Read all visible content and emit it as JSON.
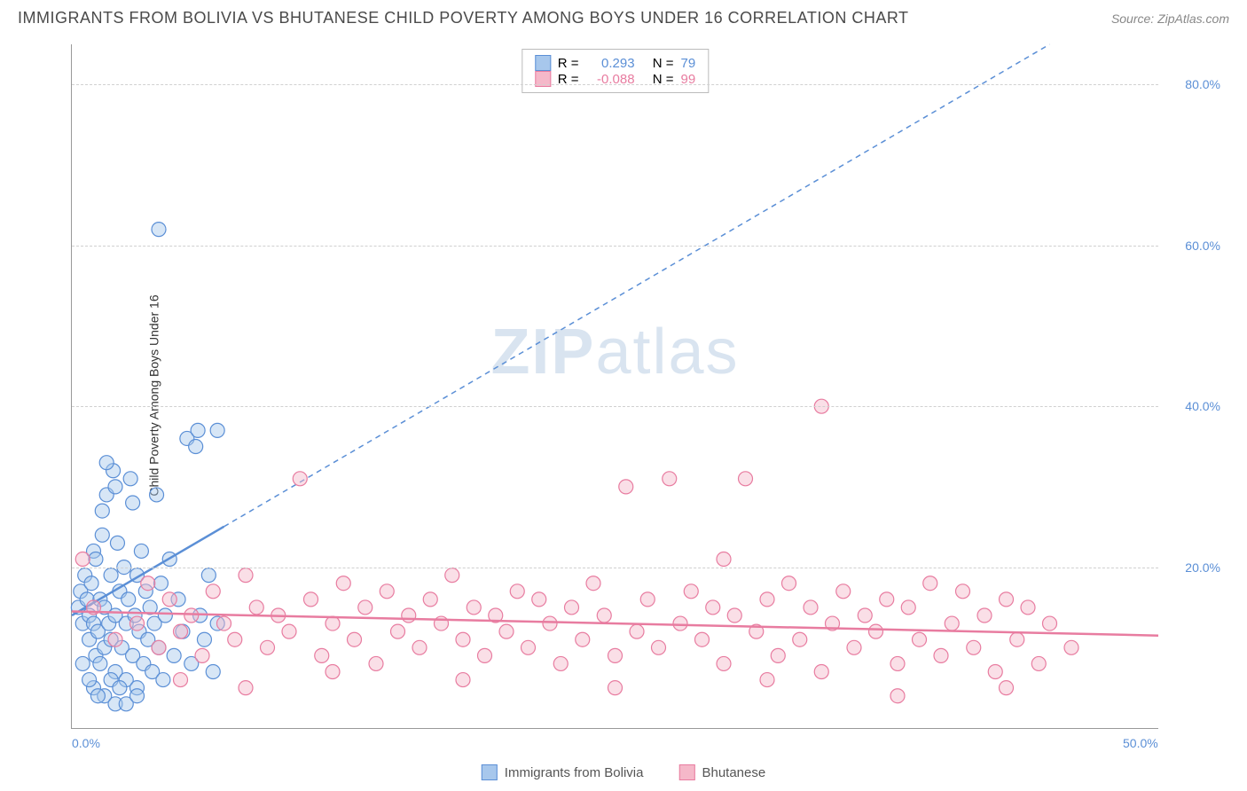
{
  "title": "IMMIGRANTS FROM BOLIVIA VS BHUTANESE CHILD POVERTY AMONG BOYS UNDER 16 CORRELATION CHART",
  "source_label": "Source:",
  "source_name": "ZipAtlas.com",
  "y_axis_label": "Child Poverty Among Boys Under 16",
  "watermark_bold": "ZIP",
  "watermark_light": "atlas",
  "chart": {
    "type": "scatter",
    "background_color": "#ffffff",
    "grid_color": "#d0d0d0",
    "axis_color": "#999999",
    "tick_label_color": "#5b8fd6",
    "xlim": [
      0,
      50
    ],
    "ylim": [
      0,
      85
    ],
    "x_ticks": [
      {
        "value": 0,
        "label": "0.0%"
      },
      {
        "value": 50,
        "label": "50.0%"
      }
    ],
    "y_ticks": [
      {
        "value": 20,
        "label": "20.0%"
      },
      {
        "value": 40,
        "label": "40.0%"
      },
      {
        "value": 60,
        "label": "60.0%"
      },
      {
        "value": 80,
        "label": "80.0%"
      }
    ],
    "series": [
      {
        "name": "Immigrants from Bolivia",
        "fill_color": "#a7c7ec",
        "stroke_color": "#5b8fd6",
        "fill_opacity": 0.45,
        "marker_radius": 8,
        "R_label": "R =",
        "R_value": "0.293",
        "N_label": "N =",
        "N_value": "79",
        "regression": {
          "x1": 0,
          "y1": 14,
          "x2": 45,
          "y2": 85,
          "solid_until_x": 7
        },
        "points": [
          [
            0.3,
            15
          ],
          [
            0.4,
            17
          ],
          [
            0.5,
            13
          ],
          [
            0.6,
            19
          ],
          [
            0.7,
            16
          ],
          [
            0.8,
            11
          ],
          [
            0.8,
            14
          ],
          [
            0.9,
            18
          ],
          [
            1.0,
            22
          ],
          [
            1.0,
            13
          ],
          [
            1.1,
            9
          ],
          [
            1.1,
            21
          ],
          [
            1.2,
            12
          ],
          [
            1.3,
            16
          ],
          [
            1.3,
            8
          ],
          [
            1.4,
            24
          ],
          [
            1.5,
            15
          ],
          [
            1.5,
            10
          ],
          [
            1.6,
            29
          ],
          [
            1.7,
            13
          ],
          [
            1.8,
            19
          ],
          [
            1.8,
            11
          ],
          [
            1.9,
            32
          ],
          [
            2.0,
            14
          ],
          [
            2.0,
            7
          ],
          [
            2.1,
            23
          ],
          [
            2.2,
            17
          ],
          [
            2.3,
            10
          ],
          [
            2.4,
            20
          ],
          [
            2.5,
            13
          ],
          [
            2.5,
            6
          ],
          [
            2.6,
            16
          ],
          [
            2.7,
            31
          ],
          [
            2.8,
            9
          ],
          [
            2.9,
            14
          ],
          [
            3.0,
            19
          ],
          [
            3.0,
            5
          ],
          [
            3.1,
            12
          ],
          [
            3.2,
            22
          ],
          [
            3.3,
            8
          ],
          [
            3.4,
            17
          ],
          [
            3.5,
            11
          ],
          [
            3.6,
            15
          ],
          [
            3.7,
            7
          ],
          [
            3.8,
            13
          ],
          [
            3.9,
            29
          ],
          [
            4.0,
            10
          ],
          [
            4.1,
            18
          ],
          [
            4.2,
            6
          ],
          [
            4.3,
            14
          ],
          [
            4.5,
            21
          ],
          [
            4.7,
            9
          ],
          [
            4.9,
            16
          ],
          [
            5.1,
            12
          ],
          [
            5.3,
            36
          ],
          [
            5.5,
            8
          ],
          [
            5.7,
            35
          ],
          [
            5.8,
            37
          ],
          [
            6.7,
            37
          ],
          [
            5.9,
            14
          ],
          [
            6.1,
            11
          ],
          [
            6.3,
            19
          ],
          [
            6.5,
            7
          ],
          [
            6.7,
            13
          ],
          [
            4.0,
            62
          ],
          [
            1.5,
            4
          ],
          [
            2.0,
            3
          ],
          [
            2.5,
            3
          ],
          [
            3.0,
            4
          ],
          [
            1.0,
            5
          ],
          [
            0.5,
            8
          ],
          [
            1.8,
            6
          ],
          [
            2.2,
            5
          ],
          [
            1.2,
            4
          ],
          [
            0.8,
            6
          ],
          [
            1.6,
            33
          ],
          [
            2.0,
            30
          ],
          [
            2.8,
            28
          ],
          [
            1.4,
            27
          ]
        ]
      },
      {
        "name": "Bhutanese",
        "fill_color": "#f5b8c9",
        "stroke_color": "#e87ca0",
        "fill_opacity": 0.45,
        "marker_radius": 8,
        "R_label": "R =",
        "R_value": "-0.088",
        "N_label": "N =",
        "N_value": "99",
        "regression": {
          "x1": 0,
          "y1": 14.5,
          "x2": 50,
          "y2": 11.5,
          "solid_until_x": 50
        },
        "points": [
          [
            0.5,
            21
          ],
          [
            1.0,
            15
          ],
          [
            2.0,
            11
          ],
          [
            3.0,
            13
          ],
          [
            3.5,
            18
          ],
          [
            4.0,
            10
          ],
          [
            4.5,
            16
          ],
          [
            5.0,
            12
          ],
          [
            5.5,
            14
          ],
          [
            6.0,
            9
          ],
          [
            6.5,
            17
          ],
          [
            7.0,
            13
          ],
          [
            7.5,
            11
          ],
          [
            8.0,
            19
          ],
          [
            8.5,
            15
          ],
          [
            9.0,
            10
          ],
          [
            9.5,
            14
          ],
          [
            10.0,
            12
          ],
          [
            10.5,
            31
          ],
          [
            11.0,
            16
          ],
          [
            11.5,
            9
          ],
          [
            12.0,
            13
          ],
          [
            12.5,
            18
          ],
          [
            13.0,
            11
          ],
          [
            13.5,
            15
          ],
          [
            14.0,
            8
          ],
          [
            14.5,
            17
          ],
          [
            15.0,
            12
          ],
          [
            15.5,
            14
          ],
          [
            16.0,
            10
          ],
          [
            16.5,
            16
          ],
          [
            17.0,
            13
          ],
          [
            17.5,
            19
          ],
          [
            18.0,
            11
          ],
          [
            18.5,
            15
          ],
          [
            19.0,
            9
          ],
          [
            19.5,
            14
          ],
          [
            20.0,
            12
          ],
          [
            20.5,
            17
          ],
          [
            21.0,
            10
          ],
          [
            21.5,
            16
          ],
          [
            22.0,
            13
          ],
          [
            22.5,
            8
          ],
          [
            23.0,
            15
          ],
          [
            23.5,
            11
          ],
          [
            24.0,
            18
          ],
          [
            24.5,
            14
          ],
          [
            25.0,
            9
          ],
          [
            25.5,
            30
          ],
          [
            26.0,
            12
          ],
          [
            26.5,
            16
          ],
          [
            27.0,
            10
          ],
          [
            27.5,
            31
          ],
          [
            28.0,
            13
          ],
          [
            28.5,
            17
          ],
          [
            29.0,
            11
          ],
          [
            29.5,
            15
          ],
          [
            30.0,
            8
          ],
          [
            30.5,
            14
          ],
          [
            31.0,
            31
          ],
          [
            31.5,
            12
          ],
          [
            32.0,
            16
          ],
          [
            32.5,
            9
          ],
          [
            33.0,
            18
          ],
          [
            33.5,
            11
          ],
          [
            34.0,
            15
          ],
          [
            34.5,
            7
          ],
          [
            34.5,
            40
          ],
          [
            35.0,
            13
          ],
          [
            35.5,
            17
          ],
          [
            36.0,
            10
          ],
          [
            36.5,
            14
          ],
          [
            37.0,
            12
          ],
          [
            37.5,
            16
          ],
          [
            38.0,
            8
          ],
          [
            38.5,
            15
          ],
          [
            39.0,
            11
          ],
          [
            39.5,
            18
          ],
          [
            40.0,
            9
          ],
          [
            40.5,
            13
          ],
          [
            41.0,
            17
          ],
          [
            41.5,
            10
          ],
          [
            42.0,
            14
          ],
          [
            42.5,
            7
          ],
          [
            43.0,
            16
          ],
          [
            43.5,
            11
          ],
          [
            44.0,
            15
          ],
          [
            44.5,
            8
          ],
          [
            45.0,
            13
          ],
          [
            46.0,
            10
          ],
          [
            5.0,
            6
          ],
          [
            8.0,
            5
          ],
          [
            12.0,
            7
          ],
          [
            18.0,
            6
          ],
          [
            25.0,
            5
          ],
          [
            32.0,
            6
          ],
          [
            38.0,
            4
          ],
          [
            43.0,
            5
          ],
          [
            30.0,
            21
          ]
        ]
      }
    ]
  }
}
